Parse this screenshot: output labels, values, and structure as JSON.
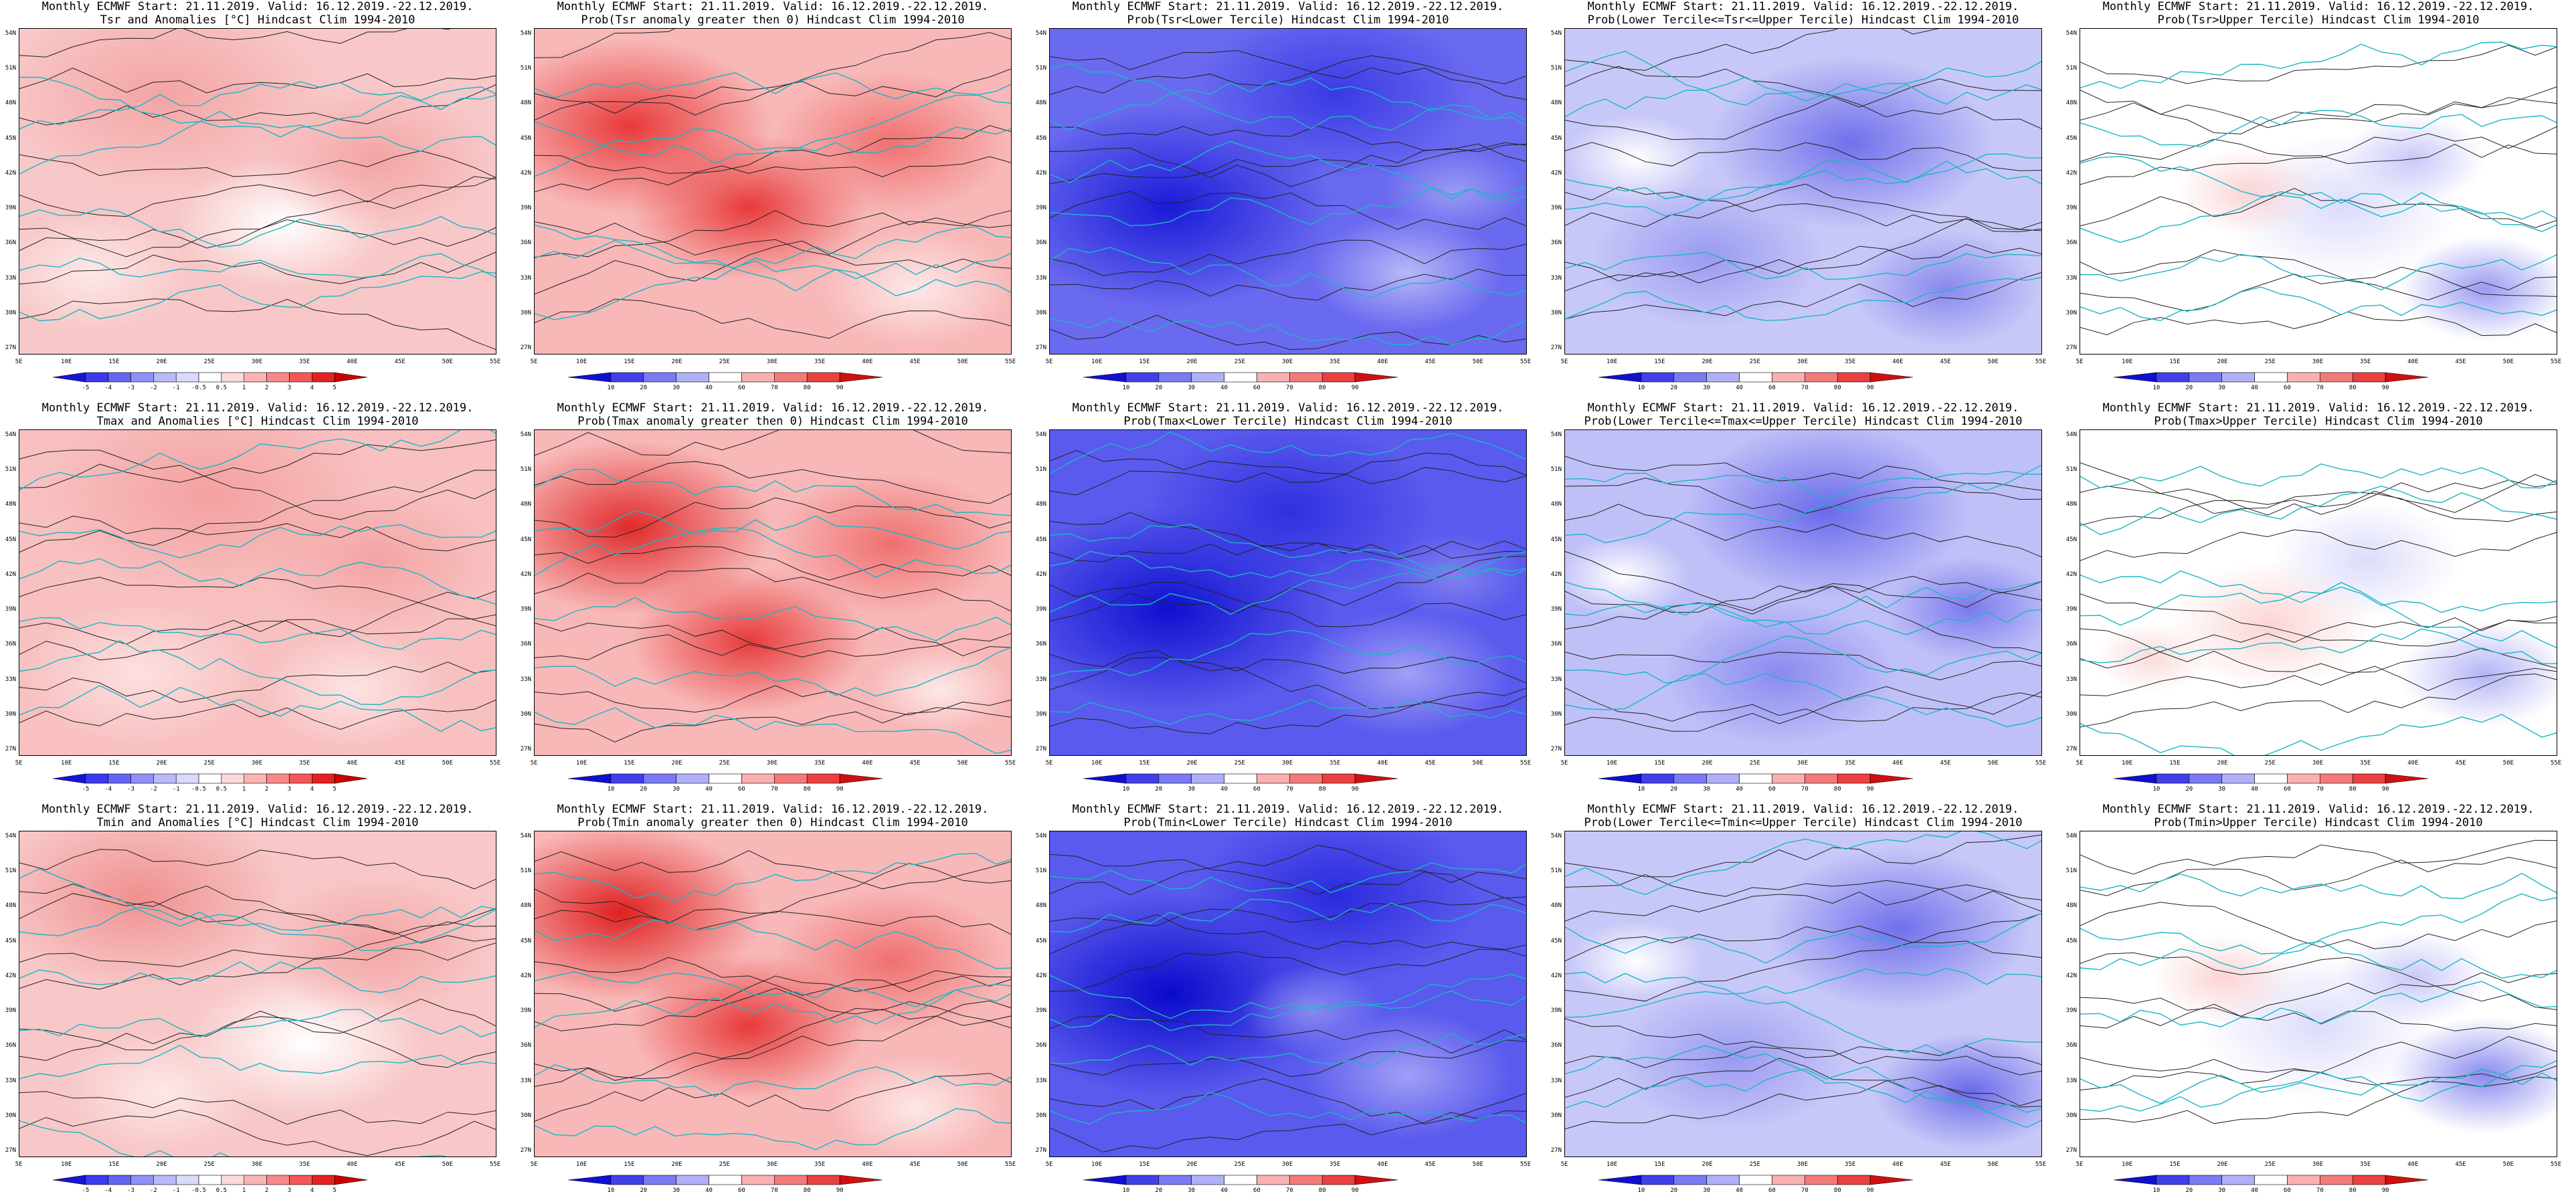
{
  "header": "Monthly ECMWF Start: 21.11.2019. Valid: 16.12.2019.-22.12.2019.",
  "x_ticks": [
    "5E",
    "10E",
    "15E",
    "20E",
    "25E",
    "30E",
    "35E",
    "40E",
    "45E",
    "50E",
    "55E"
  ],
  "y_ticks": [
    "54N",
    "51N",
    "48N",
    "45N",
    "42N",
    "39N",
    "36N",
    "33N",
    "30N",
    "27N"
  ],
  "anomaly_legend": {
    "labels": [
      "-5",
      "-4",
      "-3",
      "-2",
      "-1",
      "-0.5",
      "0.5",
      "1",
      "2",
      "3",
      "4",
      "5"
    ],
    "colors": [
      "#1515d6",
      "#3a3aee",
      "#6464f5",
      "#9090f8",
      "#b8b8fb",
      "#dadafd",
      "#ffffff",
      "#fddada",
      "#fbb4b4",
      "#f88888",
      "#f25858",
      "#e62020",
      "#c80000"
    ]
  },
  "prob_legend": {
    "labels": [
      "10",
      "20",
      "30",
      "40",
      "60",
      "70",
      "80",
      "90"
    ],
    "colors": [
      "#1010d0",
      "#4040ea",
      "#7a7af4",
      "#b0b0f9",
      "#ffffff",
      "#f9b0b0",
      "#f47a7a",
      "#ea4040",
      "#d01010"
    ]
  },
  "panels": [
    {
      "id": "tsr-anom",
      "line2": "Tsr and Anomalies [°C] Hindcast Clim 1994-2010",
      "legend": "anomaly",
      "base": "#f8c8c8",
      "blobs": [
        [
          "#f4a4a4",
          0.3,
          0.2,
          0.35
        ],
        [
          "#ffffff",
          0.55,
          0.6,
          0.22
        ],
        [
          "#f4a4a4",
          0.75,
          0.4,
          0.25
        ],
        [
          "#fde8e8",
          0.15,
          0.75,
          0.2
        ]
      ]
    },
    {
      "id": "tsr-prob-pos",
      "line2": "Prob(Tsr anomaly greater then 0) Hindcast Clim 1994-2010",
      "legend": "prob",
      "base": "#f8b8b8",
      "blobs": [
        [
          "#e83a3a",
          0.2,
          0.3,
          0.3
        ],
        [
          "#e83a3a",
          0.45,
          0.55,
          0.25
        ],
        [
          "#f07070",
          0.75,
          0.35,
          0.25
        ],
        [
          "#fde8e8",
          0.8,
          0.8,
          0.2
        ]
      ]
    },
    {
      "id": "tsr-prob-lower",
      "line2": "Prob(Tsr<Lower Tercile) Hindcast Clim 1994-2010",
      "legend": "prob",
      "base": "#6a6af0",
      "blobs": [
        [
          "#1a1ad8",
          0.25,
          0.55,
          0.35
        ],
        [
          "#3a3ae6",
          0.6,
          0.2,
          0.3
        ],
        [
          "#b8b8f8",
          0.75,
          0.75,
          0.2
        ],
        [
          "#9a9af4",
          0.85,
          0.5,
          0.15
        ]
      ]
    },
    {
      "id": "tsr-prob-middle",
      "line2": "Prob(Lower Tercile<=Tsr<=Upper Tercile) Hindcast Clim 1994-2010",
      "legend": "prob",
      "base": "#c8c8f8",
      "blobs": [
        [
          "#7070ec",
          0.6,
          0.35,
          0.3
        ],
        [
          "#9a9af2",
          0.3,
          0.7,
          0.25
        ],
        [
          "#ffffff",
          0.15,
          0.4,
          0.15
        ],
        [
          "#8888ee",
          0.8,
          0.8,
          0.2
        ]
      ]
    },
    {
      "id": "tsr-prob-upper",
      "line2": "Prob(Tsr>Upper Tercile) Hindcast Clim 1994-2010",
      "legend": "prob",
      "base": "#ffffff",
      "blobs": [
        [
          "#dcdcfb",
          0.55,
          0.55,
          0.25
        ],
        [
          "#9a9af2",
          0.85,
          0.8,
          0.18
        ],
        [
          "#fbd4d4",
          0.35,
          0.5,
          0.15
        ],
        [
          "#c8c8f8",
          0.7,
          0.4,
          0.15
        ]
      ]
    },
    {
      "id": "tmax-anom",
      "line2": "Tmax and Anomalies [°C] Hindcast Clim 1994-2010",
      "legend": "anomaly",
      "base": "#f8c0c0",
      "blobs": [
        [
          "#f4a0a0",
          0.4,
          0.2,
          0.35
        ],
        [
          "#fde0e0",
          0.25,
          0.75,
          0.25
        ],
        [
          "#f4a4a4",
          0.75,
          0.4,
          0.25
        ],
        [
          "#fce4e4",
          0.7,
          0.8,
          0.2
        ]
      ]
    },
    {
      "id": "tmax-prob-pos",
      "line2": "Prob(Tmax anomaly greater then 0) Hindcast Clim 1994-2010",
      "legend": "prob",
      "base": "#f8b8b8",
      "blobs": [
        [
          "#e02a2a",
          0.2,
          0.3,
          0.3
        ],
        [
          "#e83a3a",
          0.45,
          0.65,
          0.25
        ],
        [
          "#f07070",
          0.75,
          0.35,
          0.25
        ],
        [
          "#fde8e8",
          0.85,
          0.8,
          0.15
        ]
      ]
    },
    {
      "id": "tmax-prob-lower",
      "line2": "Prob(Tmax<Lower Tercile) Hindcast Clim 1994-2010",
      "legend": "prob",
      "base": "#5a5aee",
      "blobs": [
        [
          "#1010d0",
          0.25,
          0.55,
          0.35
        ],
        [
          "#3030e0",
          0.5,
          0.25,
          0.3
        ],
        [
          "#a0a0f6",
          0.75,
          0.75,
          0.22
        ],
        [
          "#8080f0",
          0.85,
          0.45,
          0.15
        ]
      ]
    },
    {
      "id": "tmax-prob-middle",
      "line2": "Prob(Lower Tercile<=Tmax<=Upper Tercile) Hindcast Clim 1994-2010",
      "legend": "prob",
      "base": "#c0c0f8",
      "blobs": [
        [
          "#6a6aec",
          0.55,
          0.25,
          0.3
        ],
        [
          "#8a8af0",
          0.45,
          0.75,
          0.25
        ],
        [
          "#ffffff",
          0.12,
          0.45,
          0.14
        ],
        [
          "#7a7aee",
          0.85,
          0.55,
          0.18
        ]
      ]
    },
    {
      "id": "tmax-prob-upper",
      "line2": "Prob(Tmax>Upper Tercile) Hindcast Clim 1994-2010",
      "legend": "prob",
      "base": "#ffffff",
      "blobs": [
        [
          "#fbd4d4",
          0.4,
          0.6,
          0.22
        ],
        [
          "#dcdcfb",
          0.6,
          0.4,
          0.2
        ],
        [
          "#b4b4f6",
          0.85,
          0.75,
          0.18
        ],
        [
          "#fbdada",
          0.15,
          0.7,
          0.12
        ]
      ]
    },
    {
      "id": "tmin-anom",
      "line2": "Tmin and Anomalies [°C] Hindcast Clim 1994-2010",
      "legend": "anomaly",
      "base": "#f8c8c8",
      "blobs": [
        [
          "#f09090",
          0.25,
          0.2,
          0.32
        ],
        [
          "#ffffff",
          0.6,
          0.65,
          0.25
        ],
        [
          "#f4a4a4",
          0.75,
          0.35,
          0.25
        ],
        [
          "#fde8e8",
          0.3,
          0.8,
          0.2
        ]
      ]
    },
    {
      "id": "tmin-prob-pos",
      "line2": "Prob(Tmin anomaly greater then 0) Hindcast Clim 1994-2010",
      "legend": "prob",
      "base": "#f8b8b8",
      "blobs": [
        [
          "#e02020",
          0.18,
          0.25,
          0.3
        ],
        [
          "#e83a3a",
          0.45,
          0.6,
          0.25
        ],
        [
          "#f07070",
          0.75,
          0.4,
          0.25
        ],
        [
          "#fde8e8",
          0.8,
          0.85,
          0.18
        ]
      ]
    },
    {
      "id": "tmin-prob-lower",
      "line2": "Prob(Tmin<Lower Tercile) Hindcast Clim 1994-2010",
      "legend": "prob",
      "base": "#5a5aee",
      "blobs": [
        [
          "#0a0acc",
          0.25,
          0.5,
          0.35
        ],
        [
          "#2a2ade",
          0.6,
          0.2,
          0.3
        ],
        [
          "#a0a0f6",
          0.75,
          0.75,
          0.22
        ],
        [
          "#8a8af2",
          0.55,
          0.55,
          0.15
        ]
      ]
    },
    {
      "id": "tmin-prob-middle",
      "line2": "Prob(Lower Tercile<=Tmin<=Upper Tercile) Hindcast Clim 1994-2010",
      "legend": "prob",
      "base": "#c8c8f8",
      "blobs": [
        [
          "#7070ec",
          0.7,
          0.3,
          0.28
        ],
        [
          "#9a9af2",
          0.35,
          0.7,
          0.25
        ],
        [
          "#ffffff",
          0.15,
          0.4,
          0.14
        ],
        [
          "#6a6aea",
          0.85,
          0.8,
          0.2
        ]
      ]
    },
    {
      "id": "tmin-prob-upper",
      "line2": "Prob(Tmin>Upper Tercile) Hindcast Clim 1994-2010",
      "legend": "prob",
      "base": "#ffffff",
      "blobs": [
        [
          "#dcdcfb",
          0.5,
          0.6,
          0.25
        ],
        [
          "#8a8af0",
          0.85,
          0.75,
          0.2
        ],
        [
          "#fbd4d4",
          0.3,
          0.45,
          0.15
        ],
        [
          "#c8c8f8",
          0.7,
          0.45,
          0.16
        ]
      ]
    }
  ]
}
